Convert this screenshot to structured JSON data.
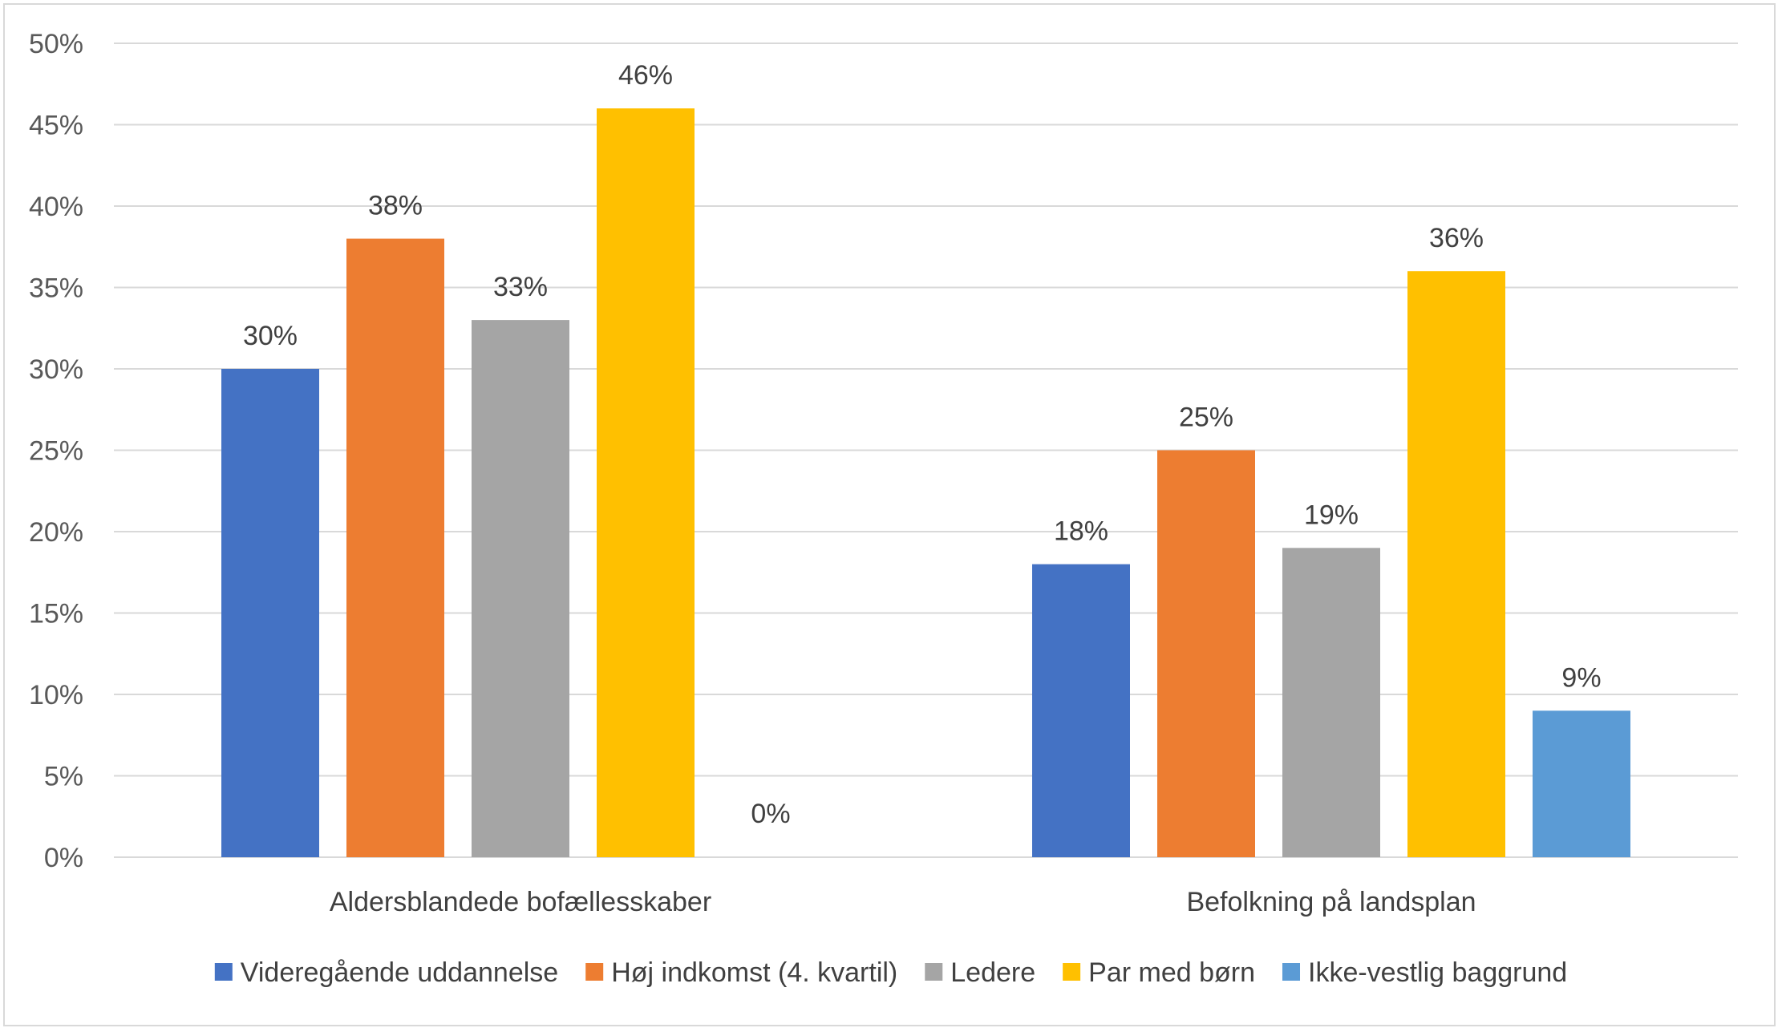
{
  "chart_data": {
    "type": "bar",
    "title": "",
    "xlabel": "",
    "ylabel": "",
    "ylim": [
      0,
      50
    ],
    "y_ticks": [
      "0%",
      "5%",
      "10%",
      "15%",
      "20%",
      "25%",
      "30%",
      "35%",
      "40%",
      "45%",
      "50%"
    ],
    "grid": true,
    "legend_position": "bottom",
    "categories": [
      "Aldersblandede bofællesskaber",
      "Befolkning på landsplan"
    ],
    "series": [
      {
        "name": "Videregående uddannelse",
        "color": "#4472C4",
        "values": [
          30,
          18
        ],
        "labels": [
          "30%",
          "18%"
        ]
      },
      {
        "name": "Høj indkomst (4. kvartil)",
        "color": "#ED7D31",
        "values": [
          38,
          25
        ],
        "labels": [
          "38%",
          "25%"
        ]
      },
      {
        "name": "Ledere",
        "color": "#A5A5A5",
        "values": [
          33,
          19
        ],
        "labels": [
          "33%",
          "19%"
        ]
      },
      {
        "name": "Par med børn",
        "color": "#FFC000",
        "values": [
          46,
          36
        ],
        "labels": [
          "46%",
          "36%"
        ]
      },
      {
        "name": "Ikke-vestlig baggrund",
        "color": "#5B9BD5",
        "values": [
          0,
          9
        ],
        "labels": [
          "0%",
          "9%"
        ]
      }
    ]
  }
}
